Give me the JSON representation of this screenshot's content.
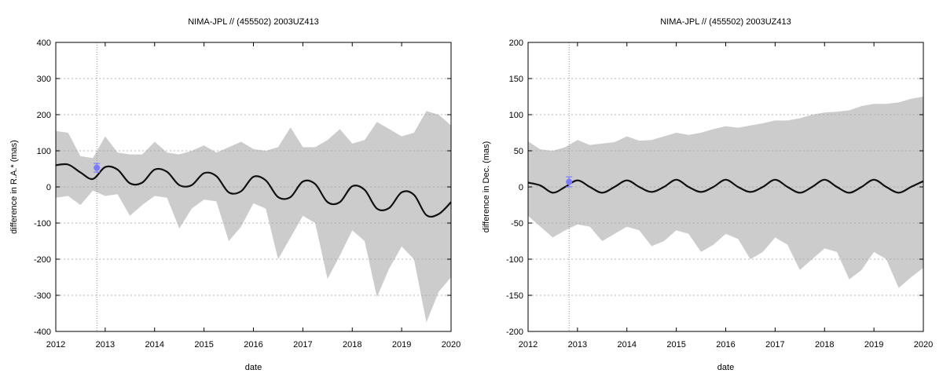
{
  "chart_data": [
    {
      "type": "area",
      "title": "NIMA-JPL // (455502) 2003UZ413",
      "xlabel": "date",
      "ylabel": "difference in R.A.* (mas)",
      "xlim": [
        2012,
        2020
      ],
      "ylim": [
        -400,
        400
      ],
      "x_ticks": [
        "2012",
        "2013",
        "2014",
        "2015",
        "2016",
        "2017",
        "2018",
        "2019",
        "2020"
      ],
      "y_ticks": [
        "-400",
        "-300",
        "-200",
        "-100",
        "0",
        "100",
        "200",
        "300",
        "400"
      ],
      "grid": true,
      "vertical_marker_x": 2012.83,
      "observation": {
        "x": 2012.83,
        "y": 53,
        "err": 12,
        "color": "#7b7bff"
      },
      "band_color": "#cccccc",
      "mean_curve": {
        "x": [
          2012.0,
          2012.25,
          2012.5,
          2012.75,
          2013.0,
          2013.25,
          2013.5,
          2013.75,
          2014.0,
          2014.25,
          2014.5,
          2014.75,
          2015.0,
          2015.25,
          2015.5,
          2015.75,
          2016.0,
          2016.25,
          2016.5,
          2016.75,
          2017.0,
          2017.25,
          2017.5,
          2017.75,
          2018.0,
          2018.25,
          2018.5,
          2018.75,
          2019.0,
          2019.25,
          2019.5,
          2019.75,
          2020.0
        ],
        "y": [
          60,
          62,
          40,
          22,
          55,
          48,
          10,
          12,
          48,
          42,
          5,
          5,
          38,
          30,
          -15,
          -12,
          28,
          18,
          -28,
          -28,
          15,
          8,
          -42,
          -42,
          2,
          -8,
          -60,
          -58,
          -15,
          -22,
          -78,
          -75,
          -42
        ]
      },
      "band_upper": {
        "x": [
          2012.0,
          2012.25,
          2012.5,
          2012.75,
          2013.0,
          2013.25,
          2013.5,
          2013.75,
          2014.0,
          2014.25,
          2014.5,
          2014.75,
          2015.0,
          2015.25,
          2015.5,
          2015.75,
          2016.0,
          2016.25,
          2016.5,
          2016.75,
          2017.0,
          2017.25,
          2017.5,
          2017.75,
          2018.0,
          2018.25,
          2018.5,
          2018.75,
          2019.0,
          2019.25,
          2019.5,
          2019.75,
          2020.0
        ],
        "y": [
          155,
          150,
          85,
          80,
          140,
          95,
          90,
          90,
          125,
          95,
          90,
          100,
          115,
          95,
          110,
          125,
          105,
          100,
          110,
          165,
          110,
          110,
          130,
          160,
          120,
          130,
          180,
          160,
          140,
          150,
          210,
          200,
          170
        ]
      },
      "band_lower": {
        "x": [
          2012.0,
          2012.25,
          2012.5,
          2012.75,
          2013.0,
          2013.25,
          2013.5,
          2013.75,
          2014.0,
          2014.25,
          2014.5,
          2014.75,
          2015.0,
          2015.25,
          2015.5,
          2015.75,
          2016.0,
          2016.25,
          2016.5,
          2016.75,
          2017.0,
          2017.25,
          2017.5,
          2017.75,
          2018.0,
          2018.25,
          2018.5,
          2018.75,
          2019.0,
          2019.25,
          2019.5,
          2019.75,
          2020.0
        ],
        "y": [
          -30,
          -25,
          -50,
          -10,
          -25,
          -20,
          -80,
          -50,
          -25,
          -30,
          -115,
          -60,
          -35,
          -40,
          -150,
          -110,
          -45,
          -60,
          -200,
          -140,
          -80,
          -100,
          -255,
          -190,
          -120,
          -150,
          -305,
          -225,
          -165,
          -200,
          -375,
          -290,
          -250
        ]
      }
    },
    {
      "type": "area",
      "title": "NIMA-JPL // (455502) 2003UZ413",
      "xlabel": "date",
      "ylabel": "difference in Dec. (mas)",
      "xlim": [
        2012,
        2020
      ],
      "ylim": [
        -200,
        200
      ],
      "x_ticks": [
        "2012",
        "2013",
        "2014",
        "2015",
        "2016",
        "2017",
        "2018",
        "2019",
        "2020"
      ],
      "y_ticks": [
        "-200",
        "-150",
        "-100",
        "-50",
        "0",
        "50",
        "100",
        "150",
        "200"
      ],
      "grid": true,
      "vertical_marker_x": 2012.83,
      "observation": {
        "x": 2012.83,
        "y": 7,
        "err": 7,
        "color": "#7b7bff"
      },
      "band_color": "#cccccc",
      "mean_curve": {
        "x": [
          2012.0,
          2012.25,
          2012.5,
          2012.75,
          2013.0,
          2013.25,
          2013.5,
          2013.75,
          2014.0,
          2014.25,
          2014.5,
          2014.75,
          2015.0,
          2015.25,
          2015.5,
          2015.75,
          2016.0,
          2016.25,
          2016.5,
          2016.75,
          2017.0,
          2017.25,
          2017.5,
          2017.75,
          2018.0,
          2018.25,
          2018.5,
          2018.75,
          2019.0,
          2019.25,
          2019.5,
          2019.75,
          2020.0
        ],
        "y": [
          6,
          2,
          -8,
          0,
          9,
          0,
          -8,
          0,
          9,
          0,
          -7,
          0,
          10,
          0,
          -7,
          0,
          10,
          0,
          -7,
          0,
          10,
          0,
          -8,
          0,
          10,
          0,
          -8,
          0,
          10,
          0,
          -8,
          0,
          8
        ]
      },
      "band_upper": {
        "x": [
          2012.0,
          2012.25,
          2012.5,
          2012.75,
          2013.0,
          2013.25,
          2013.5,
          2013.75,
          2014.0,
          2014.25,
          2014.5,
          2014.75,
          2015.0,
          2015.25,
          2015.5,
          2015.75,
          2016.0,
          2016.25,
          2016.5,
          2016.75,
          2017.0,
          2017.25,
          2017.5,
          2017.75,
          2018.0,
          2018.25,
          2018.5,
          2018.75,
          2019.0,
          2019.25,
          2019.5,
          2019.75,
          2020.0
        ],
        "y": [
          63,
          52,
          50,
          55,
          65,
          58,
          60,
          62,
          70,
          64,
          65,
          70,
          75,
          72,
          75,
          80,
          84,
          82,
          85,
          88,
          92,
          92,
          95,
          100,
          103,
          104,
          106,
          112,
          115,
          115,
          117,
          122,
          125
        ]
      },
      "band_lower": {
        "x": [
          2012.0,
          2012.25,
          2012.5,
          2012.75,
          2013.0,
          2013.25,
          2013.5,
          2013.75,
          2014.0,
          2014.25,
          2014.5,
          2014.75,
          2015.0,
          2015.25,
          2015.5,
          2015.75,
          2016.0,
          2016.25,
          2016.5,
          2016.75,
          2017.0,
          2017.25,
          2017.5,
          2017.75,
          2018.0,
          2018.25,
          2018.5,
          2018.75,
          2019.0,
          2019.25,
          2019.5,
          2019.75,
          2020.0
        ],
        "y": [
          -40,
          -55,
          -70,
          -60,
          -52,
          -55,
          -75,
          -65,
          -55,
          -60,
          -82,
          -75,
          -60,
          -65,
          -90,
          -80,
          -65,
          -72,
          -100,
          -90,
          -70,
          -80,
          -115,
          -100,
          -85,
          -90,
          -128,
          -115,
          -90,
          -100,
          -140,
          -125,
          -112
        ]
      }
    }
  ]
}
